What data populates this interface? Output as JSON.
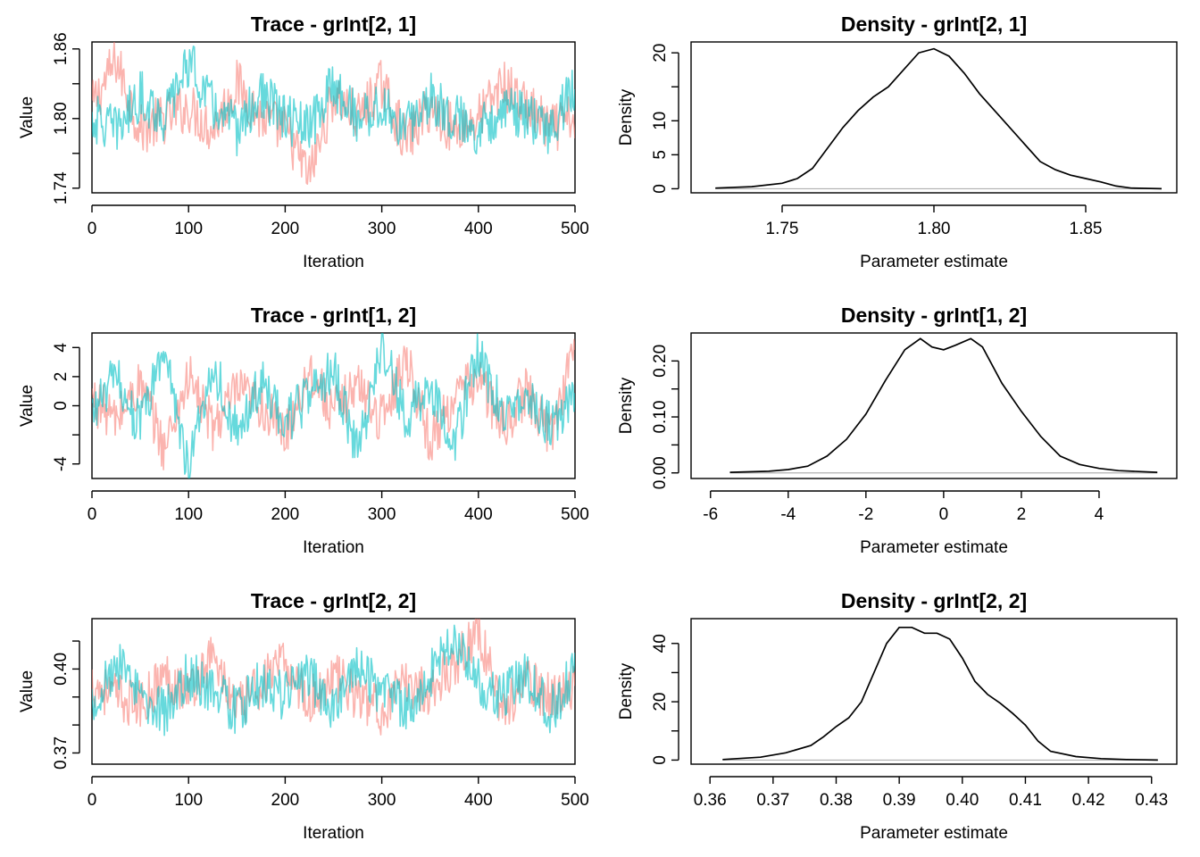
{
  "chart_data": [
    {
      "type": "line",
      "title": "Trace - grInt[2, 1]",
      "xlabel": "Iteration",
      "ylabel": "Value",
      "xlim": [
        0,
        500
      ],
      "ylim": [
        1.736,
        1.866
      ],
      "xticks": [
        0,
        100,
        200,
        300,
        400,
        500
      ],
      "xtick_labels": [
        "0",
        "100",
        "200",
        "300",
        "400",
        "500"
      ],
      "yticks": [
        1.74,
        1.77,
        1.8,
        1.83,
        1.86
      ],
      "ytick_labels": [
        "1.74",
        "",
        "1.80",
        "",
        "1.86"
      ],
      "grid": false,
      "series": [
        {
          "color": "#F8766D",
          "x": [
            0,
            25,
            50,
            75,
            100,
            125,
            150,
            175,
            200,
            225,
            250,
            275,
            300,
            325,
            350,
            375,
            400,
            425,
            450,
            475,
            500
          ],
          "values": [
            1.81,
            1.85,
            1.79,
            1.8,
            1.81,
            1.79,
            1.83,
            1.8,
            1.79,
            1.75,
            1.82,
            1.8,
            1.83,
            1.78,
            1.81,
            1.79,
            1.8,
            1.83,
            1.81,
            1.79,
            1.8
          ]
        },
        {
          "color": "#00BFC4",
          "x": [
            0,
            25,
            50,
            75,
            100,
            125,
            150,
            175,
            200,
            225,
            250,
            275,
            300,
            325,
            350,
            375,
            400,
            425,
            450,
            475,
            500
          ],
          "values": [
            1.8,
            1.79,
            1.82,
            1.8,
            1.85,
            1.81,
            1.79,
            1.82,
            1.8,
            1.79,
            1.83,
            1.8,
            1.81,
            1.79,
            1.82,
            1.8,
            1.79,
            1.81,
            1.8,
            1.79,
            1.83
          ]
        }
      ]
    },
    {
      "type": "line",
      "title": "Density - grInt[2, 1]",
      "xlabel": "Parameter estimate",
      "ylabel": "Density",
      "xlim": [
        1.72,
        1.88
      ],
      "ylim": [
        -0.6,
        21.6
      ],
      "xticks": [
        1.75,
        1.8,
        1.85
      ],
      "xtick_labels": [
        "1.75",
        "1.80",
        "1.85"
      ],
      "yticks": [
        0,
        5,
        10,
        15,
        20
      ],
      "ytick_labels": [
        "0",
        "5",
        "10",
        "",
        "20"
      ],
      "grid": false,
      "x": [
        1.728,
        1.74,
        1.75,
        1.755,
        1.76,
        1.765,
        1.77,
        1.775,
        1.78,
        1.785,
        1.79,
        1.795,
        1.8,
        1.805,
        1.81,
        1.815,
        1.82,
        1.825,
        1.83,
        1.835,
        1.84,
        1.845,
        1.85,
        1.855,
        1.86,
        1.865,
        1.875
      ],
      "values": [
        0.1,
        0.3,
        0.8,
        1.5,
        3.0,
        6.0,
        9.0,
        11.5,
        13.5,
        15.0,
        17.5,
        20.0,
        20.6,
        19.5,
        17.0,
        14.0,
        11.5,
        9.0,
        6.5,
        4.0,
        2.8,
        2.0,
        1.5,
        1.0,
        0.4,
        0.1,
        0.0
      ]
    },
    {
      "type": "line",
      "title": "Trace - grInt[1, 2]",
      "xlabel": "Iteration",
      "ylabel": "Value",
      "xlim": [
        0,
        500
      ],
      "ylim": [
        -5,
        5
      ],
      "xticks": [
        0,
        100,
        200,
        300,
        400,
        500
      ],
      "xtick_labels": [
        "0",
        "100",
        "200",
        "300",
        "400",
        "500"
      ],
      "yticks": [
        -4,
        -2,
        0,
        2,
        4
      ],
      "ytick_labels": [
        "-4",
        "",
        "0",
        "2",
        "4"
      ],
      "grid": false,
      "series": [
        {
          "color": "#F8766D",
          "x": [
            0,
            25,
            50,
            75,
            100,
            125,
            150,
            175,
            200,
            225,
            250,
            275,
            300,
            325,
            350,
            375,
            400,
            425,
            450,
            475,
            500
          ],
          "values": [
            0.5,
            -1.0,
            1.5,
            -3.0,
            2.0,
            -1.5,
            1.0,
            0.0,
            -2.0,
            2.5,
            -0.5,
            1.5,
            -1.0,
            3.5,
            -2.5,
            0.5,
            2.0,
            -1.5,
            1.0,
            -2.0,
            4.4
          ]
        },
        {
          "color": "#00BFC4",
          "x": [
            0,
            25,
            50,
            75,
            100,
            125,
            150,
            175,
            200,
            225,
            250,
            275,
            300,
            325,
            350,
            375,
            400,
            425,
            450,
            475,
            500
          ],
          "values": [
            -0.5,
            2.0,
            -1.5,
            4.0,
            -4.5,
            3.0,
            -2.0,
            1.5,
            -1.0,
            0.5,
            2.5,
            -3.5,
            4.5,
            -1.0,
            1.5,
            -2.5,
            3.5,
            -0.5,
            1.0,
            -1.5,
            0.5
          ]
        }
      ]
    },
    {
      "type": "line",
      "title": "Density - grInt[1, 2]",
      "xlabel": "Parameter estimate",
      "ylabel": "Density",
      "xlim": [
        -6.5,
        6.0
      ],
      "ylim": [
        -0.01,
        0.25
      ],
      "xticks": [
        -6,
        -4,
        -2,
        0,
        2,
        4
      ],
      "xtick_labels": [
        "-6",
        "-4",
        "-2",
        "0",
        "2",
        "4"
      ],
      "yticks": [
        0.0,
        0.05,
        0.1,
        0.15,
        0.2
      ],
      "ytick_labels": [
        "0.00",
        "",
        "0.10",
        "",
        "0.20"
      ],
      "grid": false,
      "x": [
        -5.5,
        -4.5,
        -4.0,
        -3.5,
        -3.0,
        -2.5,
        -2.0,
        -1.5,
        -1.0,
        -0.6,
        -0.3,
        0.0,
        0.3,
        0.7,
        1.0,
        1.5,
        2.0,
        2.5,
        3.0,
        3.5,
        4.0,
        4.5,
        5.5
      ],
      "values": [
        0.001,
        0.003,
        0.006,
        0.012,
        0.03,
        0.06,
        0.105,
        0.165,
        0.22,
        0.24,
        0.225,
        0.22,
        0.228,
        0.24,
        0.225,
        0.16,
        0.11,
        0.065,
        0.03,
        0.015,
        0.008,
        0.004,
        0.001
      ]
    },
    {
      "type": "line",
      "title": "Trace - grInt[2, 2]",
      "xlabel": "Iteration",
      "ylabel": "Value",
      "xlim": [
        0,
        500
      ],
      "ylim": [
        0.366,
        0.418
      ],
      "xticks": [
        0,
        100,
        200,
        300,
        400,
        500
      ],
      "xtick_labels": [
        "0",
        "100",
        "200",
        "300",
        "400",
        "500"
      ],
      "yticks": [
        0.37,
        0.38,
        0.39,
        0.4,
        0.41
      ],
      "ytick_labels": [
        "0.37",
        "",
        "",
        "0.40",
        ""
      ],
      "grid": false,
      "series": [
        {
          "color": "#F8766D",
          "x": [
            0,
            25,
            50,
            75,
            100,
            125,
            150,
            175,
            200,
            225,
            250,
            275,
            300,
            325,
            350,
            375,
            400,
            425,
            450,
            475,
            500
          ],
          "values": [
            0.395,
            0.39,
            0.387,
            0.398,
            0.392,
            0.405,
            0.385,
            0.395,
            0.402,
            0.388,
            0.398,
            0.39,
            0.385,
            0.395,
            0.392,
            0.402,
            0.414,
            0.385,
            0.395,
            0.39,
            0.393
          ]
        },
        {
          "color": "#00BFC4",
          "x": [
            0,
            25,
            50,
            75,
            100,
            125,
            150,
            175,
            200,
            225,
            250,
            275,
            300,
            325,
            350,
            375,
            400,
            425,
            450,
            475,
            500
          ],
          "values": [
            0.388,
            0.402,
            0.39,
            0.385,
            0.398,
            0.392,
            0.385,
            0.395,
            0.39,
            0.398,
            0.385,
            0.4,
            0.392,
            0.386,
            0.398,
            0.41,
            0.395,
            0.39,
            0.398,
            0.385,
            0.4
          ]
        }
      ]
    },
    {
      "type": "line",
      "title": "Density - grInt[2, 2]",
      "xlabel": "Parameter estimate",
      "ylabel": "Density",
      "xlim": [
        0.357,
        0.434
      ],
      "ylim": [
        -1.4,
        48.5
      ],
      "xticks": [
        0.36,
        0.37,
        0.38,
        0.39,
        0.4,
        0.41,
        0.42,
        0.43
      ],
      "xtick_labels": [
        "0.36",
        "0.37",
        "0.38",
        "0.39",
        "0.40",
        "0.41",
        "0.42",
        "0.43"
      ],
      "yticks": [
        0,
        10,
        20,
        30,
        40
      ],
      "ytick_labels": [
        "0",
        "",
        "20",
        "",
        "40"
      ],
      "grid": false,
      "x": [
        0.362,
        0.368,
        0.372,
        0.376,
        0.378,
        0.38,
        0.382,
        0.384,
        0.386,
        0.388,
        0.39,
        0.392,
        0.394,
        0.396,
        0.398,
        0.4,
        0.402,
        0.404,
        0.406,
        0.408,
        0.41,
        0.412,
        0.414,
        0.418,
        0.422,
        0.426,
        0.431
      ],
      "values": [
        0.2,
        1.0,
        2.5,
        5.0,
        8.0,
        11.5,
        14.5,
        20.0,
        30.0,
        40.0,
        45.5,
        45.5,
        43.5,
        43.5,
        41.5,
        35.0,
        27.0,
        22.5,
        19.5,
        16.0,
        12.0,
        6.5,
        3.0,
        1.2,
        0.5,
        0.2,
        0.0
      ]
    }
  ]
}
